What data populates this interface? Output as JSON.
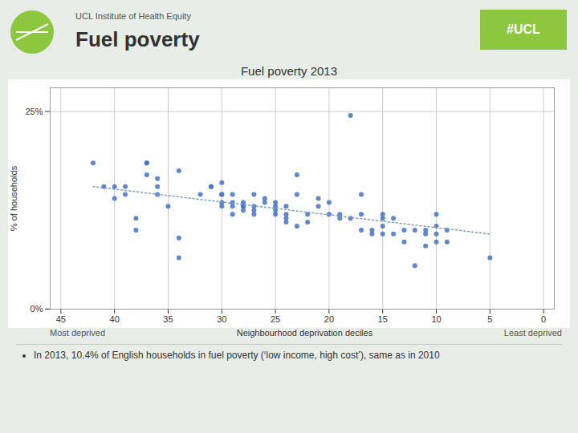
{
  "chart_data": {
    "type": "scatter",
    "title": "Fuel poverty 2013",
    "xlabel": "Neighbourhood deprivation deciles",
    "ylabel": "% of households",
    "annotations": [
      "UCL Institute of Health Equity",
      "Fuel poverty",
      "#UCL",
      "Most deprived",
      "Least deprived",
      "In 2013, 10.4% of English households in fuel poverty (‘low income, high cost’), same as in 2010"
    ],
    "xlim": [
      46,
      -1
    ],
    "ylim": [
      0,
      0.28
    ],
    "xticks": [
      45,
      40,
      35,
      30,
      25,
      20,
      15,
      10,
      5,
      0
    ],
    "yticks": [
      {
        "value": 0,
        "label": "0%"
      },
      {
        "value": 0.25,
        "label": "25%"
      }
    ],
    "grid": true,
    "series": [
      {
        "type": "scatter",
        "color": "#4472C4",
        "marker": "circle",
        "x": [
          39,
          40,
          40,
          41,
          38,
          38,
          39,
          42,
          34,
          36,
          37,
          37,
          37,
          36,
          36,
          35,
          34,
          34,
          32,
          31,
          31,
          30,
          30,
          30,
          30,
          30,
          29,
          29,
          29,
          29,
          28,
          28,
          28,
          28,
          27,
          27,
          27,
          27,
          26,
          26,
          25,
          25,
          25,
          25,
          24,
          24,
          24,
          24,
          23,
          23,
          23,
          22,
          22,
          21,
          21,
          20,
          20,
          19,
          19,
          18,
          18,
          17,
          17,
          17,
          16,
          16,
          15,
          15,
          15,
          15,
          14,
          14,
          13,
          13,
          12,
          12,
          11,
          11,
          11,
          10,
          10,
          10,
          10,
          9,
          9,
          5
        ],
        "values": [
          0.145,
          0.155,
          0.14,
          0.155,
          0.115,
          0.1,
          0.155,
          0.185,
          0.175,
          0.155,
          0.185,
          0.185,
          0.17,
          0.165,
          0.145,
          0.13,
          0.09,
          0.065,
          0.145,
          0.155,
          0.155,
          0.145,
          0.16,
          0.145,
          0.135,
          0.13,
          0.145,
          0.135,
          0.13,
          0.12,
          0.135,
          0.13,
          0.13,
          0.125,
          0.145,
          0.13,
          0.125,
          0.12,
          0.14,
          0.135,
          0.135,
          0.13,
          0.125,
          0.12,
          0.13,
          0.12,
          0.115,
          0.11,
          0.17,
          0.145,
          0.105,
          0.12,
          0.11,
          0.14,
          0.13,
          0.135,
          0.12,
          0.12,
          0.115,
          0.245,
          0.115,
          0.145,
          0.12,
          0.1,
          0.1,
          0.095,
          0.12,
          0.115,
          0.105,
          0.095,
          0.115,
          0.095,
          0.1,
          0.085,
          0.1,
          0.055,
          0.1,
          0.095,
          0.08,
          0.12,
          0.105,
          0.095,
          0.085,
          0.1,
          0.085,
          0.065
        ]
      },
      {
        "type": "line",
        "color": "#7f9fbf",
        "line_style": "dotted",
        "x": [
          42,
          5
        ],
        "values": [
          0.155,
          0.095
        ]
      }
    ]
  }
}
